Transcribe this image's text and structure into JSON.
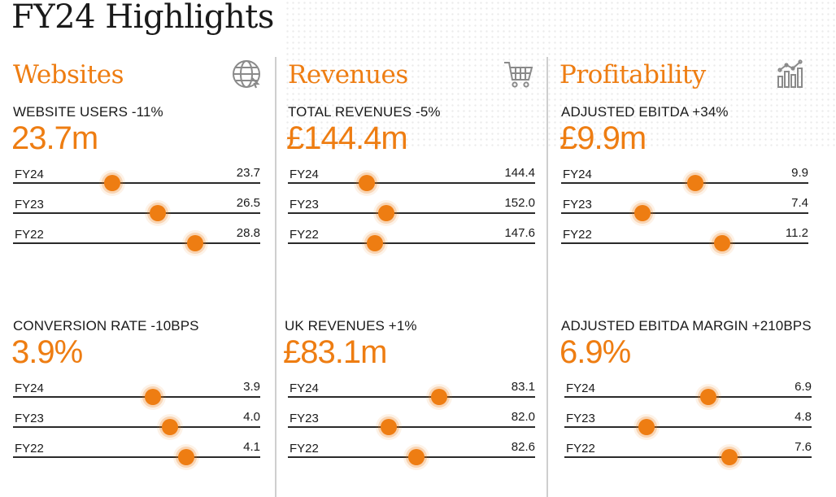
{
  "page_title": "FY24 Highlights",
  "columns": [
    {
      "heading": "Websites",
      "icon": "globe-icon",
      "blocks": [
        {
          "label": "WEBSITE USERS -11%",
          "value": "23.7m",
          "rows": [
            {
              "year": "FY24",
              "value": "23.7"
            },
            {
              "year": "FY23",
              "value": "26.5"
            },
            {
              "year": "FY22",
              "value": "28.8"
            }
          ]
        },
        {
          "label": "CONVERSION RATE -10BPS",
          "value": "3.9%",
          "rows": [
            {
              "year": "FY24",
              "value": "3.9"
            },
            {
              "year": "FY23",
              "value": "4.0"
            },
            {
              "year": "FY22",
              "value": "4.1"
            }
          ]
        }
      ]
    },
    {
      "heading": "Revenues",
      "icon": "shopping-cart-icon",
      "blocks": [
        {
          "label": "TOTAL REVENUES -5%",
          "value": "£144.4m",
          "rows": [
            {
              "year": "FY24",
              "value": "144.4"
            },
            {
              "year": "FY23",
              "value": "152.0"
            },
            {
              "year": "FY22",
              "value": "147.6"
            }
          ]
        },
        {
          "label": "UK REVENUES +1%",
          "value": "£83.1m",
          "rows": [
            {
              "year": "FY24",
              "value": "83.1"
            },
            {
              "year": "FY23",
              "value": "82.0"
            },
            {
              "year": "FY22",
              "value": "82.6"
            }
          ]
        }
      ]
    },
    {
      "heading": "Profitability",
      "icon": "bar-chart-icon",
      "blocks": [
        {
          "label": "ADJUSTED EBITDA +34%",
          "value": "£9.9m",
          "rows": [
            {
              "year": "FY24",
              "value": "9.9"
            },
            {
              "year": "FY23",
              "value": "7.4"
            },
            {
              "year": "FY22",
              "value": "11.2"
            }
          ]
        },
        {
          "label": "ADJUSTED EBITDA MARGIN +210BPS",
          "value": "6.9%",
          "rows": [
            {
              "year": "FY24",
              "value": "6.9"
            },
            {
              "year": "FY23",
              "value": "4.8"
            },
            {
              "year": "FY22",
              "value": "7.6"
            }
          ]
        }
      ]
    }
  ],
  "colors": {
    "accent": "#ee7d12",
    "text": "#1a1a1a",
    "divider": "#cfcfcf"
  },
  "chart_data": [
    {
      "type": "scatter",
      "title": "WEBSITE USERS -11%",
      "categories": [
        "FY24",
        "FY23",
        "FY22"
      ],
      "values": [
        23.7,
        26.5,
        28.8
      ],
      "xlim": [
        17.6,
        32.8
      ]
    },
    {
      "type": "scatter",
      "title": "CONVERSION RATE -10BPS",
      "categories": [
        "FY24",
        "FY23",
        "FY22"
      ],
      "values": [
        3.9,
        4.0,
        4.1
      ],
      "xlim": [
        3.05,
        4.55
      ]
    },
    {
      "type": "scatter",
      "title": "TOTAL REVENUES -5%",
      "categories": [
        "FY24",
        "FY23",
        "FY22"
      ],
      "values": [
        144.4,
        152.0,
        147.6
      ],
      "xlim": [
        113.5,
        210.0
      ]
    },
    {
      "type": "scatter",
      "title": "UK REVENUES +1%",
      "categories": [
        "FY24",
        "FY23",
        "FY22"
      ],
      "values": [
        83.1,
        82.0,
        82.6
      ],
      "xlim": [
        79.8,
        85.2
      ]
    },
    {
      "type": "scatter",
      "title": "ADJUSTED EBITDA +34%",
      "categories": [
        "FY24",
        "FY23",
        "FY22"
      ],
      "values": [
        9.9,
        7.4,
        11.2
      ],
      "xlim": [
        3.5,
        15.3
      ]
    },
    {
      "type": "scatter",
      "title": "ADJUSTED EBITDA MARGIN +210BPS",
      "categories": [
        "FY24",
        "FY23",
        "FY22"
      ],
      "values": [
        6.9,
        4.8,
        7.6
      ],
      "xlim": [
        2.0,
        10.4
      ]
    }
  ]
}
